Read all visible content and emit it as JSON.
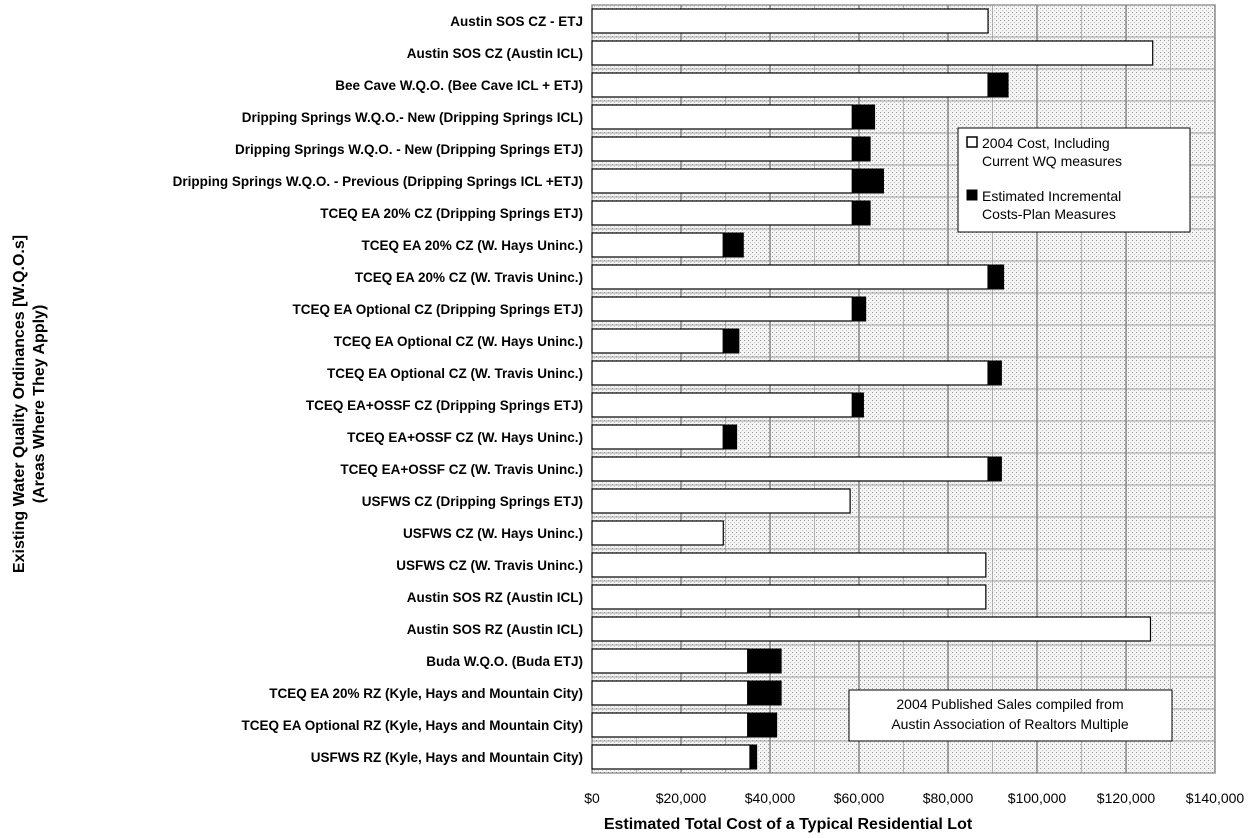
{
  "chart_data": {
    "type": "bar",
    "orientation": "horizontal",
    "stacked": true,
    "xlabel": "Estimated Total Cost of a Typical Residential Lot",
    "ylabel_line1": "Existing Water Quality Ordinances [W.Q.O.s]",
    "ylabel_line2": "(Areas Where They Apply)",
    "xlim": [
      0,
      140000
    ],
    "x_ticks": [
      0,
      20000,
      40000,
      60000,
      80000,
      100000,
      120000,
      140000
    ],
    "x_tick_labels": [
      "$0",
      "$20,000",
      "$40,000",
      "$60,000",
      "$80,000",
      "$100,000",
      "$120,000",
      "$140,000"
    ],
    "grid": true,
    "legend_position": "top-right",
    "categories": [
      "Austin SOS CZ - ETJ",
      "Austin SOS CZ (Austin ICL)",
      "Bee Cave W.Q.O. (Bee Cave ICL + ETJ)",
      "Dripping Springs W.Q.O.- New (Dripping Springs ICL)",
      "Dripping Springs W.Q.O. - New (Dripping Springs ETJ)",
      "Dripping Springs W.Q.O. - Previous (Dripping Springs ICL +ETJ)",
      "TCEQ EA 20% CZ (Dripping Springs ETJ)",
      "TCEQ EA 20% CZ (W. Hays Uninc.)",
      "TCEQ EA 20% CZ (W. Travis Uninc.)",
      "TCEQ EA Optional CZ (Dripping Springs ETJ)",
      "TCEQ EA Optional CZ (W. Hays Uninc.)",
      "TCEQ EA Optional CZ (W. Travis Uninc.)",
      "TCEQ EA+OSSF CZ (Dripping Springs ETJ)",
      "TCEQ EA+OSSF CZ (W. Hays Uninc.)",
      "TCEQ EA+OSSF CZ (W. Travis Uninc.)",
      "USFWS CZ (Dripping Springs ETJ)",
      "USFWS CZ (W. Hays Uninc.)",
      "USFWS CZ (W. Travis Uninc.)",
      "Austin SOS RZ (Austin ICL)",
      "Austin SOS RZ (Austin ICL)",
      "Buda W.Q.O. (Buda ETJ)",
      "TCEQ EA 20% RZ (Kyle, Hays and Mountain City)",
      "TCEQ EA Optional RZ (Kyle, Hays and Mountain City)",
      "USFWS RZ (Kyle, Hays and Mountain City)"
    ],
    "series": [
      {
        "name": "2004 Cost, Including Current WQ measures",
        "color": "#ffffff",
        "values": [
          89000,
          126000,
          89000,
          58500,
          58500,
          58500,
          58500,
          29500,
          89000,
          58500,
          29500,
          89000,
          58500,
          29500,
          89000,
          58000,
          29500,
          88500,
          88500,
          125500,
          35000,
          35000,
          35000,
          35500
        ]
      },
      {
        "name": "Estimated Incremental Costs-Plan Measures",
        "color": "#000000",
        "values": [
          0,
          0,
          4500,
          5000,
          4000,
          7000,
          4000,
          4500,
          3500,
          3000,
          3500,
          3000,
          2500,
          3000,
          3000,
          0,
          0,
          0,
          0,
          0,
          7500,
          7500,
          6500,
          1500
        ]
      }
    ],
    "legend_entries": [
      "2004 Cost, Including\nCurrent WQ measures",
      "Estimated Incremental\nCosts-Plan Measures"
    ],
    "annotation": "2004 Published Sales compiled from\nAustin Association of Realtors Multiple"
  }
}
